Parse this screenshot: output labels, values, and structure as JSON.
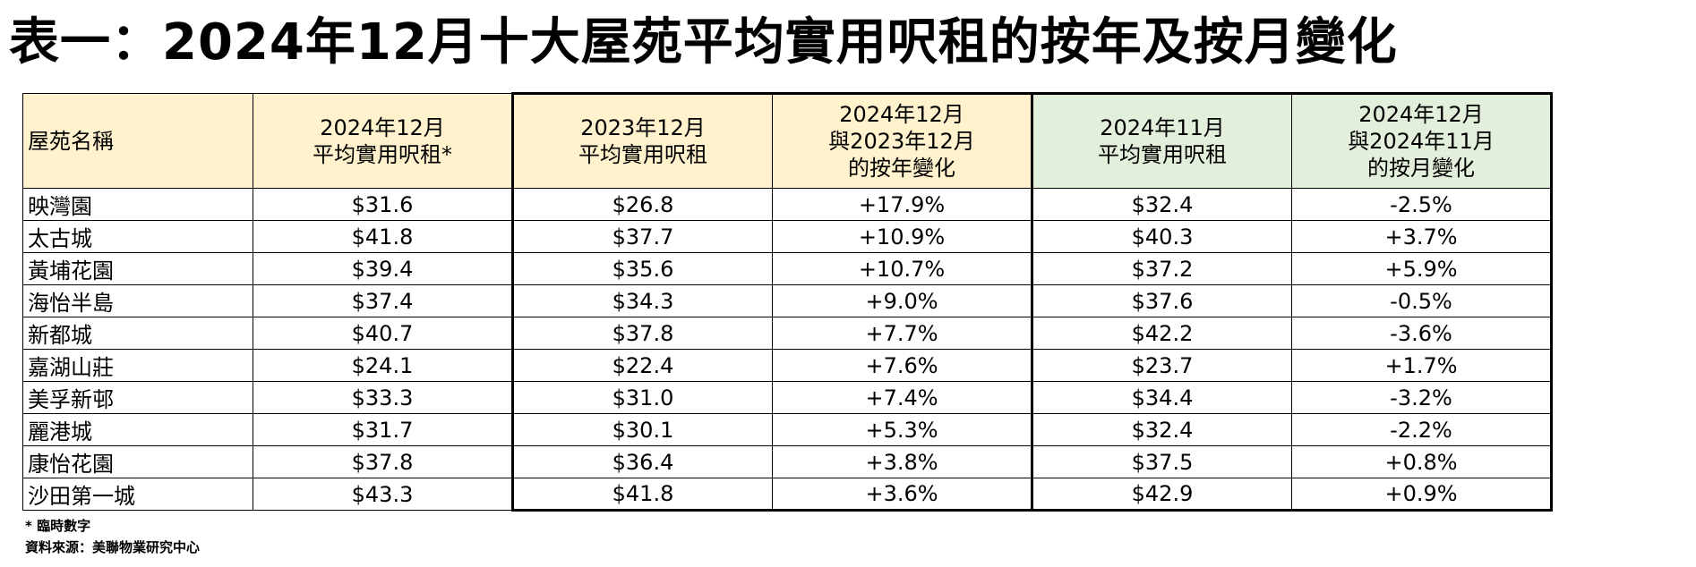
{
  "title": "表一：2024年12月十大屋苑平均實用呎租的按年及按月變化",
  "table": {
    "headers": {
      "name": "屋苑名稱",
      "dec2024": [
        "2024年12月",
        "平均實用呎租*"
      ],
      "dec2023": [
        "2023年12月",
        "平均實用呎租"
      ],
      "yoy": [
        "2024年12月",
        "與2023年12月",
        "的按年變化"
      ],
      "nov2024": [
        "2024年11月",
        "平均實用呎租"
      ],
      "mom": [
        "2024年12月",
        "與2024年11月",
        "的按月變化"
      ]
    },
    "rows": [
      [
        "映灣園",
        "$31.6",
        "$26.8",
        "+17.9%",
        "$32.4",
        "-2.5%"
      ],
      [
        "太古城",
        "$41.8",
        "$37.7",
        "+10.9%",
        "$40.3",
        "+3.7%"
      ],
      [
        "黃埔花園",
        "$39.4",
        "$35.6",
        "+10.7%",
        "$37.2",
        "+5.9%"
      ],
      [
        "海怡半島",
        "$37.4",
        "$34.3",
        "+9.0%",
        "$37.6",
        "-0.5%"
      ],
      [
        "新都城",
        "$40.7",
        "$37.8",
        "+7.7%",
        "$42.2",
        "-3.6%"
      ],
      [
        "嘉湖山莊",
        "$24.1",
        "$22.4",
        "+7.6%",
        "$23.7",
        "+1.7%"
      ],
      [
        "美孚新邨",
        "$33.3",
        "$31.0",
        "+7.4%",
        "$34.4",
        "-3.2%"
      ],
      [
        "麗港城",
        "$31.7",
        "$30.1",
        "+5.3%",
        "$32.4",
        "-2.2%"
      ],
      [
        "康怡花園",
        "$37.8",
        "$36.4",
        "+3.8%",
        "$37.5",
        "+0.8%"
      ],
      [
        "沙田第一城",
        "$43.3",
        "$41.8",
        "+3.6%",
        "$42.9",
        "+0.9%"
      ]
    ]
  },
  "notes": {
    "provisional": "* 臨時數字",
    "source": "資料來源：美聯物業研究中心"
  },
  "colors": {
    "header_yellow": "#fff2cc",
    "header_green": "#e2efda"
  }
}
